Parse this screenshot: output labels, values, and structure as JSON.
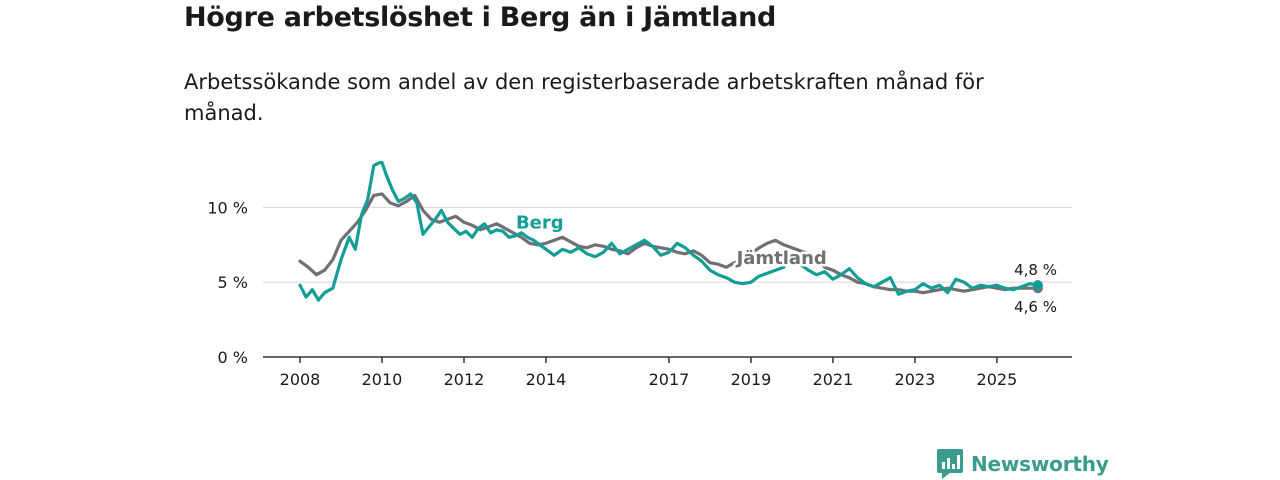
{
  "title": "Högre arbetslöshet i Berg än i Jämtland",
  "subtitle": "Arbetssökande som andel av den registerbaserade arbetskraften månad för månad.",
  "brand": {
    "name": "Newsworthy"
  },
  "colors": {
    "berg": "#139e95",
    "jamtland": "#706f73",
    "grid": "#d9d9d9",
    "axis": "#333333",
    "brand": "#3a9b8f"
  },
  "chart_data": {
    "type": "line",
    "title": "Högre arbetslöshet i Berg än i Jämtland",
    "xlabel": "",
    "ylabel": "",
    "xlim": [
      2008,
      2026.1
    ],
    "ylim": [
      0,
      13.5
    ],
    "y_ticks": [
      0,
      5,
      10
    ],
    "y_tick_labels": [
      "0 %",
      "5 %",
      "10 %"
    ],
    "x_ticks": [
      2008,
      2010,
      2012,
      2014,
      2017,
      2019,
      2021,
      2023,
      2025
    ],
    "x_tick_labels": [
      "2008",
      "2010",
      "2012",
      "2014",
      "2017",
      "2019",
      "2021",
      "2023",
      "2025"
    ],
    "end_labels": {
      "berg": "4,8 %",
      "jamtland": "4,6 %"
    },
    "series": [
      {
        "name": "Berg",
        "label": "Berg",
        "x": [
          2008.0,
          2008.15,
          2008.3,
          2008.45,
          2008.6,
          2008.8,
          2009.0,
          2009.2,
          2009.35,
          2009.5,
          2009.65,
          2009.8,
          2009.95,
          2010.0,
          2010.1,
          2010.25,
          2010.4,
          2010.55,
          2010.7,
          2010.85,
          2011.0,
          2011.15,
          2011.3,
          2011.45,
          2011.6,
          2011.75,
          2011.9,
          2012.05,
          2012.2,
          2012.35,
          2012.5,
          2012.65,
          2012.8,
          2012.95,
          2013.1,
          2013.25,
          2013.4,
          2013.55,
          2013.7,
          2013.85,
          2014.0,
          2014.2,
          2014.4,
          2014.6,
          2014.8,
          2015.0,
          2015.2,
          2015.4,
          2015.6,
          2015.8,
          2016.0,
          2016.2,
          2016.4,
          2016.6,
          2016.8,
          2017.0,
          2017.2,
          2017.4,
          2017.6,
          2017.8,
          2018.0,
          2018.2,
          2018.4,
          2018.6,
          2018.8,
          2019.0,
          2019.2,
          2019.4,
          2019.6,
          2019.8,
          2020.0,
          2020.2,
          2020.4,
          2020.6,
          2020.8,
          2021.0,
          2021.2,
          2021.4,
          2021.6,
          2021.8,
          2022.0,
          2022.2,
          2022.4,
          2022.6,
          2022.8,
          2023.0,
          2023.2,
          2023.4,
          2023.6,
          2023.8,
          2024.0,
          2024.2,
          2024.4,
          2024.6,
          2024.8,
          2025.0,
          2025.2,
          2025.4,
          2025.6,
          2025.8,
          2026.0
        ],
        "values": [
          4.8,
          4.0,
          4.5,
          3.8,
          4.3,
          4.6,
          6.5,
          8.0,
          7.2,
          9.5,
          10.5,
          12.8,
          13.0,
          13.0,
          12.2,
          11.2,
          10.4,
          10.6,
          10.9,
          10.3,
          8.2,
          8.7,
          9.2,
          9.8,
          9.0,
          8.6,
          8.2,
          8.4,
          8.0,
          8.6,
          8.9,
          8.3,
          8.5,
          8.4,
          8.0,
          8.1,
          8.3,
          8.0,
          7.8,
          7.5,
          7.2,
          6.8,
          7.2,
          7.0,
          7.3,
          6.9,
          6.7,
          7.0,
          7.6,
          6.9,
          7.2,
          7.5,
          7.8,
          7.4,
          6.8,
          7.0,
          7.6,
          7.3,
          6.8,
          6.4,
          5.8,
          5.5,
          5.3,
          5.0,
          4.9,
          5.0,
          5.4,
          5.6,
          5.8,
          6.0,
          6.8,
          6.2,
          5.8,
          5.5,
          5.7,
          5.2,
          5.5,
          5.9,
          5.3,
          4.9,
          4.7,
          5.0,
          5.3,
          4.2,
          4.4,
          4.5,
          4.9,
          4.6,
          4.8,
          4.3,
          5.2,
          5.0,
          4.6,
          4.8,
          4.7,
          4.8,
          4.6,
          4.5,
          4.7,
          4.9,
          4.8
        ]
      },
      {
        "name": "Jämtland",
        "label": "Jämtland",
        "x": [
          2008.0,
          2008.2,
          2008.4,
          2008.6,
          2008.8,
          2009.0,
          2009.2,
          2009.4,
          2009.6,
          2009.8,
          2010.0,
          2010.2,
          2010.4,
          2010.6,
          2010.8,
          2011.0,
          2011.2,
          2011.4,
          2011.6,
          2011.8,
          2012.0,
          2012.2,
          2012.4,
          2012.6,
          2012.8,
          2013.0,
          2013.2,
          2013.4,
          2013.6,
          2013.8,
          2014.0,
          2014.2,
          2014.4,
          2014.6,
          2014.8,
          2015.0,
          2015.2,
          2015.4,
          2015.6,
          2015.8,
          2016.0,
          2016.2,
          2016.4,
          2016.6,
          2016.8,
          2017.0,
          2017.2,
          2017.4,
          2017.6,
          2017.8,
          2018.0,
          2018.2,
          2018.4,
          2018.6,
          2018.8,
          2019.0,
          2019.2,
          2019.4,
          2019.6,
          2019.8,
          2020.0,
          2020.2,
          2020.4,
          2020.6,
          2020.8,
          2021.0,
          2021.2,
          2021.4,
          2021.6,
          2021.8,
          2022.0,
          2022.2,
          2022.4,
          2022.6,
          2022.8,
          2023.0,
          2023.2,
          2023.4,
          2023.6,
          2023.8,
          2024.0,
          2024.2,
          2024.4,
          2024.6,
          2024.8,
          2025.0,
          2025.2,
          2025.4,
          2025.6,
          2025.8,
          2026.0
        ],
        "values": [
          6.4,
          6.0,
          5.5,
          5.8,
          6.5,
          7.8,
          8.4,
          9.0,
          9.8,
          10.8,
          10.9,
          10.3,
          10.1,
          10.4,
          10.8,
          9.8,
          9.2,
          9.0,
          9.2,
          9.4,
          9.0,
          8.8,
          8.5,
          8.7,
          8.9,
          8.6,
          8.3,
          8.0,
          7.6,
          7.5,
          7.6,
          7.8,
          8.0,
          7.7,
          7.4,
          7.3,
          7.5,
          7.4,
          7.2,
          7.1,
          6.9,
          7.3,
          7.6,
          7.4,
          7.3,
          7.2,
          7.0,
          6.9,
          7.1,
          6.8,
          6.3,
          6.2,
          6.0,
          6.3,
          6.5,
          6.9,
          7.3,
          7.6,
          7.8,
          7.5,
          7.3,
          7.1,
          6.9,
          6.5,
          6.0,
          5.8,
          5.5,
          5.3,
          5.0,
          4.9,
          4.7,
          4.6,
          4.5,
          4.5,
          4.4,
          4.4,
          4.3,
          4.4,
          4.5,
          4.6,
          4.5,
          4.4,
          4.5,
          4.6,
          4.7,
          4.6,
          4.5,
          4.6,
          4.6,
          4.6,
          4.6
        ]
      }
    ]
  }
}
